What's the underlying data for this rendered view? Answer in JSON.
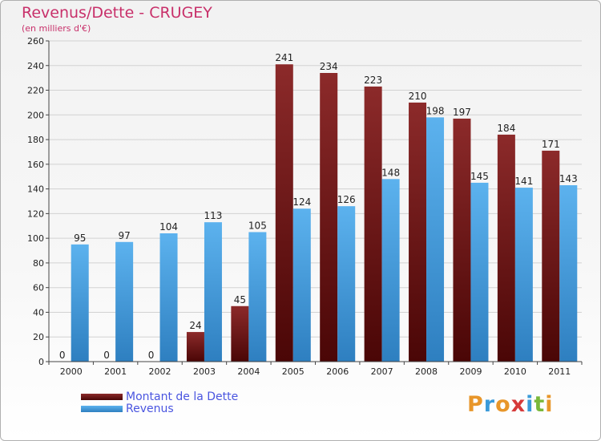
{
  "header": {
    "title": "Revenus/Dette - CRUGEY",
    "subtitle": "(en milliers d'€)"
  },
  "chart_data": {
    "type": "bar",
    "title": "Revenus/Dette - CRUGEY",
    "subtitle": "(en milliers d'€)",
    "categories": [
      "2000",
      "2001",
      "2002",
      "2003",
      "2004",
      "2005",
      "2006",
      "2007",
      "2008",
      "2009",
      "2010",
      "2011"
    ],
    "series": [
      {
        "name": "Montant de la Dette",
        "color": "#7a1616",
        "values": [
          0,
          0,
          0,
          24,
          45,
          241,
          234,
          223,
          210,
          197,
          184,
          171
        ]
      },
      {
        "name": "Revenus",
        "color": "#4ea6e6",
        "values": [
          95,
          97,
          104,
          113,
          105,
          124,
          126,
          148,
          198,
          145,
          141,
          143
        ]
      }
    ],
    "ylim": [
      0,
      260
    ],
    "yticks": [
      0,
      20,
      40,
      60,
      80,
      100,
      120,
      140,
      160,
      180,
      200,
      220,
      240,
      260
    ],
    "grid": true,
    "legend_position": "bottom-left"
  },
  "legend": {
    "items": [
      {
        "label": "Montant de la Dette",
        "color": "#6e1010"
      },
      {
        "label": "Revenus",
        "color": "#4ea6e6"
      }
    ]
  },
  "logo": {
    "letters": [
      {
        "char": "P",
        "color": "#e8962a"
      },
      {
        "char": "r",
        "color": "#3a9ad9"
      },
      {
        "char": "o",
        "color": "#e8962a"
      },
      {
        "char": "x",
        "color": "#d63a3a"
      },
      {
        "char": "i",
        "color": "#3a9ad9"
      },
      {
        "char": "t",
        "color": "#7ab83a"
      },
      {
        "char": "i",
        "color": "#e8962a"
      }
    ]
  }
}
